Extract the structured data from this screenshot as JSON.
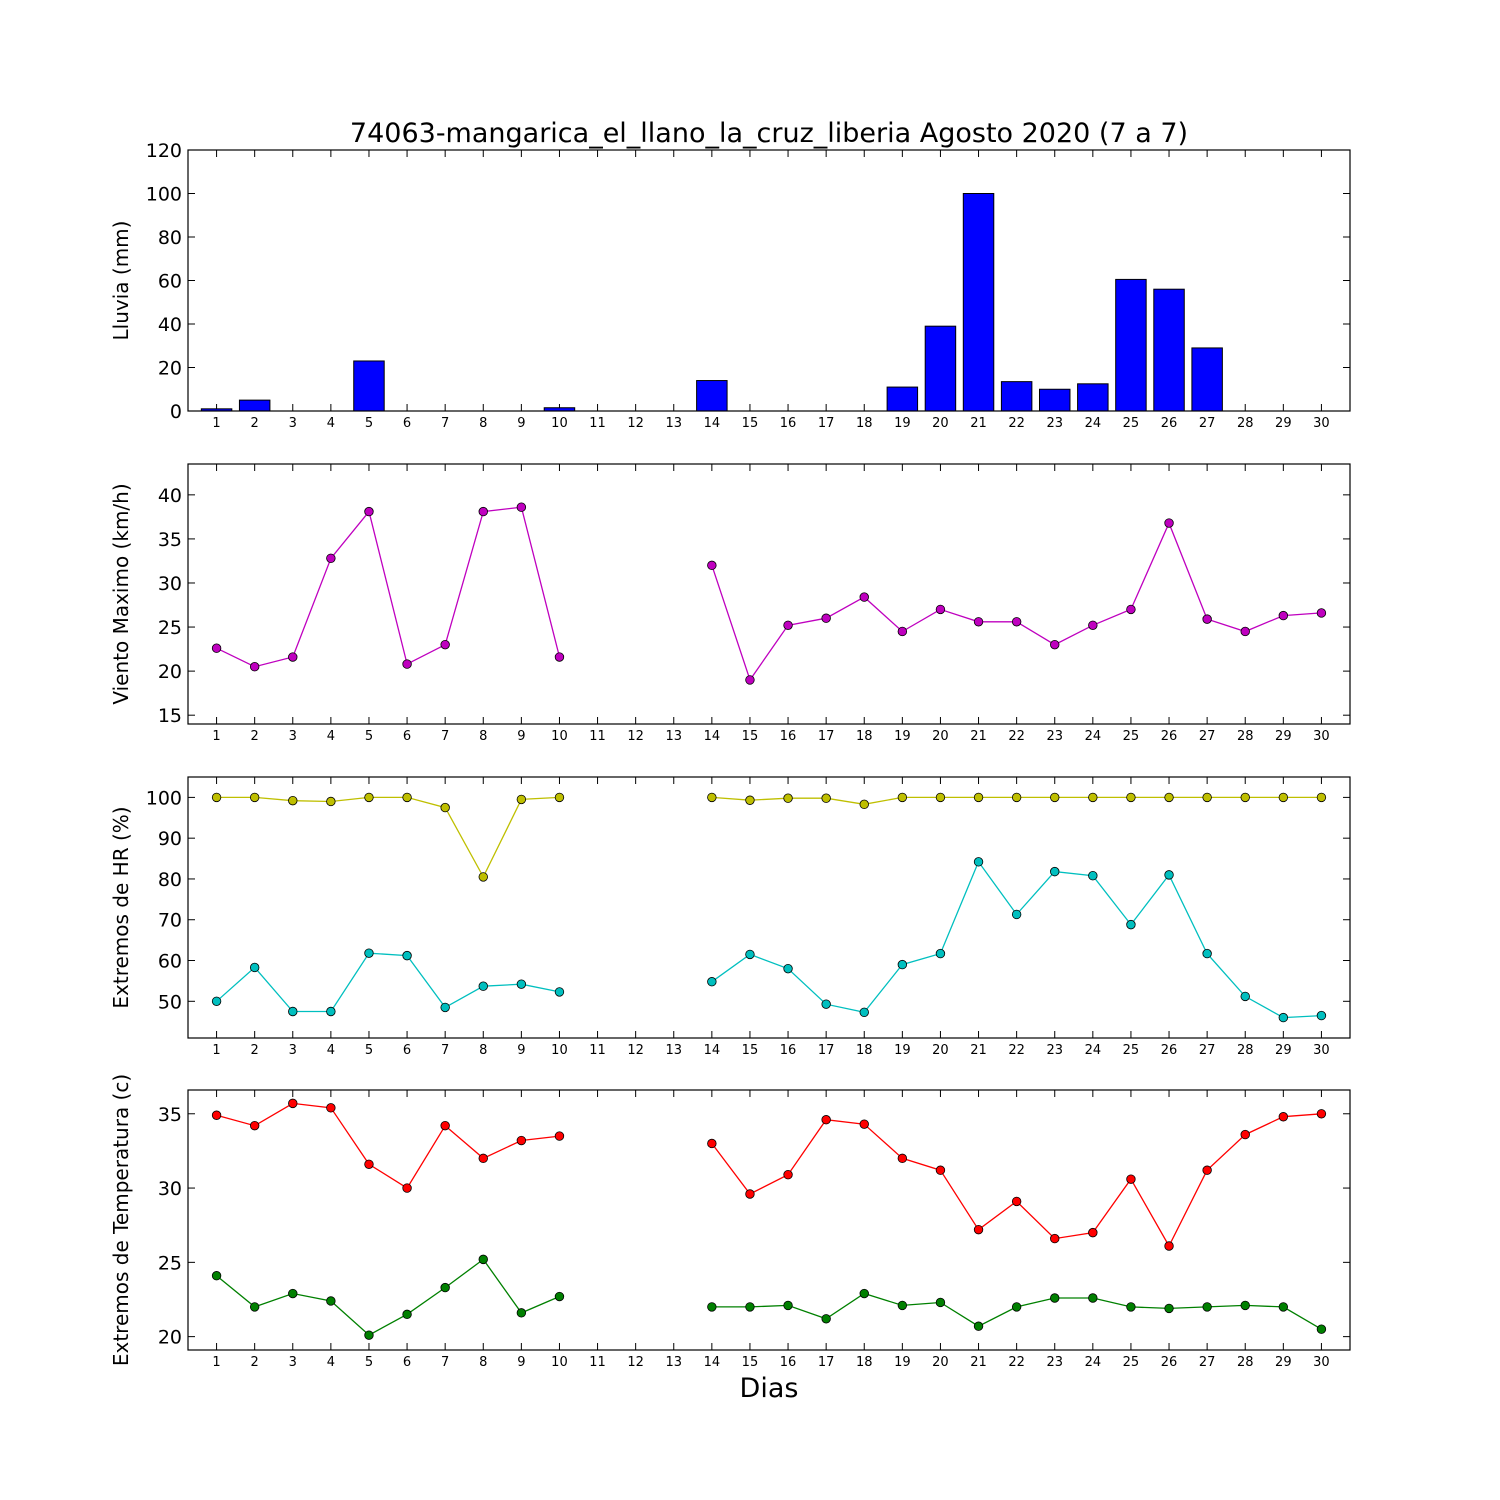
{
  "chart_data": {
    "title": "74063-mangarica_el_llano_la_cruz_liberia Agosto 2020  (7 a 7)",
    "xlabel": "Dias",
    "x": [
      1,
      2,
      3,
      4,
      5,
      6,
      7,
      8,
      9,
      10,
      11,
      12,
      13,
      14,
      15,
      16,
      17,
      18,
      19,
      20,
      21,
      22,
      23,
      24,
      25,
      26,
      27,
      28,
      29,
      30
    ],
    "panels": [
      {
        "type": "bar",
        "ylabel": "Lluvia (mm)",
        "ylim": [
          0,
          120
        ],
        "yticks": [
          0,
          20,
          40,
          60,
          80,
          100,
          120
        ],
        "series": [
          {
            "color": "#0000ff",
            "values": [
              1.0,
              5.0,
              0.0,
              0.0,
              23.0,
              0.0,
              0.0,
              0.0,
              0.0,
              1.5,
              0.0,
              0.0,
              0.0,
              14.0,
              0.0,
              0.0,
              0.0,
              0.0,
              11.0,
              39.0,
              100.0,
              13.5,
              10.0,
              12.5,
              60.5,
              56.0,
              29.0,
              0.0,
              0.0,
              0.0
            ]
          }
        ]
      },
      {
        "type": "line",
        "ylabel": "Viento Maximo (km/h)",
        "ylim": [
          14,
          43.5
        ],
        "yticks": [
          15,
          20,
          25,
          30,
          35,
          40
        ],
        "series": [
          {
            "color": "#bf00bf",
            "values": [
              22.6,
              20.5,
              21.6,
              32.8,
              38.1,
              20.8,
              23.0,
              38.1,
              38.6,
              21.6,
              null,
              null,
              null,
              32.0,
              19.0,
              25.2,
              26.0,
              28.4,
              24.5,
              27.0,
              25.6,
              25.6,
              23.0,
              25.2,
              27.0,
              36.8,
              25.9,
              24.5,
              26.3,
              26.6
            ]
          }
        ]
      },
      {
        "type": "line",
        "ylabel": "Extremos de HR (%)",
        "ylim": [
          41,
          105
        ],
        "yticks": [
          50,
          60,
          70,
          80,
          90,
          100
        ],
        "series": [
          {
            "color": "#bfbf00",
            "values": [
              100.0,
              100.0,
              99.2,
              99.0,
              100.0,
              100.0,
              97.5,
              80.5,
              99.5,
              100.0,
              null,
              null,
              null,
              100.0,
              99.3,
              99.8,
              99.8,
              98.3,
              100.0,
              100.0,
              100.0,
              100.0,
              100.0,
              100.0,
              100.0,
              100.0,
              100.0,
              100.0,
              100.0,
              100.0
            ]
          },
          {
            "color": "#00bfbf",
            "values": [
              50.0,
              58.3,
              47.5,
              47.5,
              61.8,
              61.2,
              48.5,
              53.7,
              54.2,
              52.3,
              null,
              null,
              null,
              54.8,
              61.5,
              58.0,
              49.3,
              47.3,
              59.0,
              61.7,
              84.2,
              71.3,
              81.8,
              80.8,
              68.8,
              81.0,
              61.7,
              51.2,
              46.0,
              46.5
            ]
          }
        ]
      },
      {
        "type": "line",
        "ylabel": "Extremos de Temperatura (c)",
        "ylim": [
          19.1,
          36.6
        ],
        "yticks": [
          20,
          25,
          30,
          35
        ],
        "series": [
          {
            "color": "#ff0000",
            "values": [
              34.9,
              34.2,
              35.7,
              35.4,
              31.6,
              30.0,
              34.2,
              32.0,
              33.2,
              33.5,
              null,
              null,
              null,
              33.0,
              29.6,
              30.9,
              34.6,
              34.3,
              32.0,
              31.2,
              27.2,
              29.1,
              26.6,
              27.0,
              30.6,
              26.1,
              31.2,
              33.6,
              34.8,
              35.0
            ]
          },
          {
            "color": "#008000",
            "values": [
              24.1,
              22.0,
              22.9,
              22.4,
              20.1,
              21.5,
              23.3,
              25.2,
              21.6,
              22.7,
              null,
              null,
              null,
              22.0,
              22.0,
              22.1,
              21.2,
              22.9,
              22.1,
              22.3,
              20.7,
              22.0,
              22.6,
              22.6,
              22.0,
              21.9,
              22.0,
              22.1,
              22.0,
              20.5
            ]
          }
        ]
      }
    ]
  }
}
